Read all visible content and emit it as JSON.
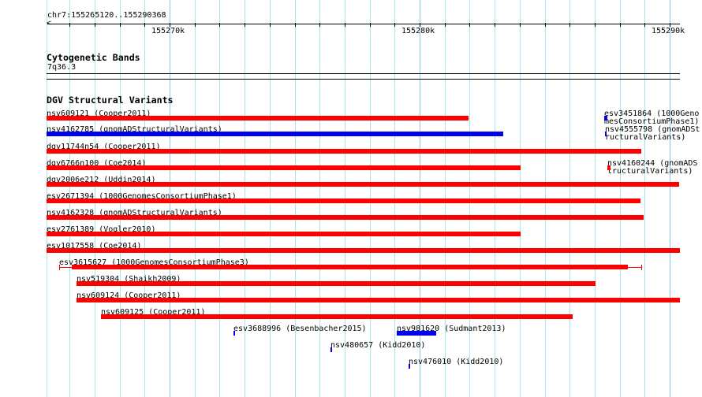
{
  "ruler": {
    "location": "chr7:155265120..155290368",
    "tick_labels": [
      "155270k",
      "155280k",
      "155290k"
    ]
  },
  "cytoband_track": {
    "title": "Cytogenetic Bands",
    "band": "7q36.3"
  },
  "dgv_track": {
    "title": "DGV Structural Variants",
    "features": [
      {
        "label": "nsv609121 (Cooper2011)",
        "color": "#ff0000"
      },
      {
        "label": "esv3451864 (1000GenomesConsortiumPhase1)",
        "color": "#0000ee"
      },
      {
        "label": "nsv4162785 (gnomADStructuralVariants)",
        "color": "#0000ee"
      },
      {
        "label": "nsv4555798 (gnomADStructuralVariants)",
        "color": "#0000ee"
      },
      {
        "label": "dgv11744n54 (Cooper2011)",
        "color": "#ff0000"
      },
      {
        "label": "dgv6766n100 (Coe2014)",
        "color": "#ff0000"
      },
      {
        "label": "nsv4160244 (gnomADStructuralVariants)",
        "color": "#ff0000"
      },
      {
        "label": "dgv2006e212 (Uddin2014)",
        "color": "#ff0000"
      },
      {
        "label": "esv2671394 (1000GenomesConsortiumPhase1)",
        "color": "#ff0000"
      },
      {
        "label": "nsv4162328 (gnomADStructuralVariants)",
        "color": "#ff0000"
      },
      {
        "label": "esv2761389 (Vogler2010)",
        "color": "#ff0000"
      },
      {
        "label": "esv1017558 (Coe2014)",
        "color": "#ff0000"
      },
      {
        "label": "esv3615627 (1000GenomesConsortiumPhase3)",
        "color": "#ff0000"
      },
      {
        "label": "nsv519304 (Shaikh2009)",
        "color": "#ff0000"
      },
      {
        "label": "nsv609124 (Cooper2011)",
        "color": "#ff0000"
      },
      {
        "label": "nsv609125 (Cooper2011)",
        "color": "#ff0000"
      },
      {
        "label": "esv3688996 (Besenbacher2015)",
        "color": "#0000ee"
      },
      {
        "label": "nsv981620 (Sudmant2013)",
        "color": "#0000ee"
      },
      {
        "label": "nsv480657 (Kidd2010)",
        "color": "#0000ee"
      },
      {
        "label": "nsv476010 (Kidd2010)",
        "color": "#0000ee"
      }
    ]
  }
}
